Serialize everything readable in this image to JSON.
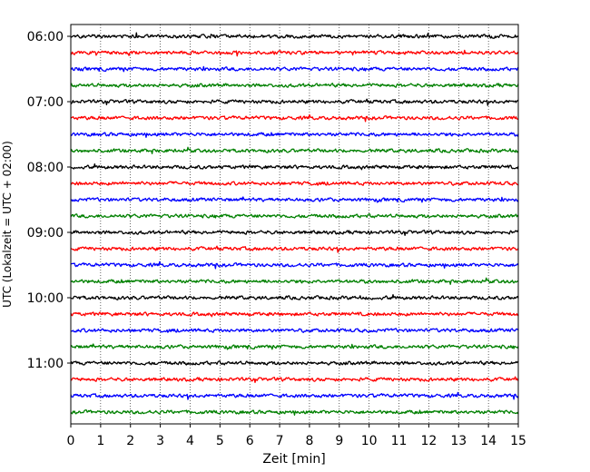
{
  "chart_data": {
    "type": "line",
    "xlabel": "Zeit  [min]",
    "ylabel": "UTC (Lokalzeit = UTC + 02:00)",
    "xlim": [
      0,
      15
    ],
    "x_ticks": [
      "0",
      "1",
      "2",
      "3",
      "4",
      "5",
      "6",
      "7",
      "8",
      "9",
      "10",
      "11",
      "12",
      "13",
      "14",
      "15"
    ],
    "y_ticks": [
      "06:00",
      "07:00",
      "08:00",
      "09:00",
      "10:00",
      "11:00"
    ],
    "grid": "vertical-dotted",
    "trace_start": "06:00",
    "trace_interval_min": 15,
    "trace_count": 24,
    "trace_colors": [
      "#000000",
      "#ff0000",
      "#0000ff",
      "#008000"
    ]
  }
}
